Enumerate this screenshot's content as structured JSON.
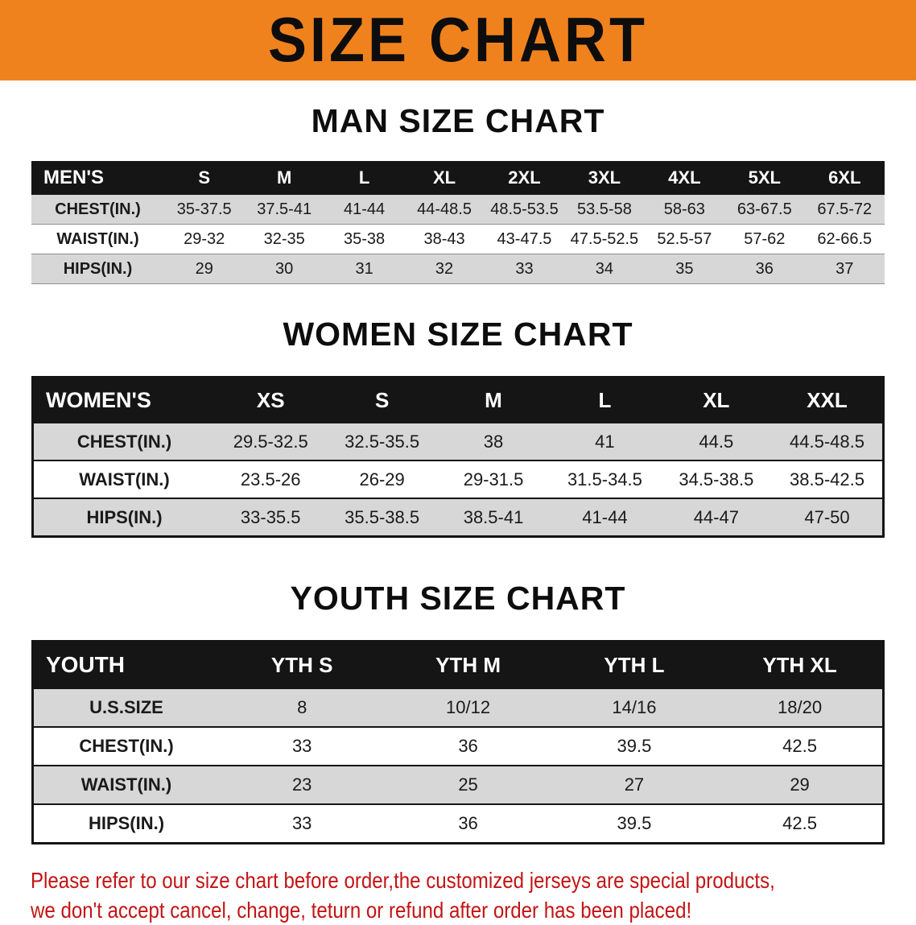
{
  "colors": {
    "banner_bg": "#F0821E",
    "table_header_bg": "#151515",
    "row_band": "#D7D7D7",
    "disclaimer_red": "#C31414"
  },
  "banner": {
    "title": "SIZE CHART"
  },
  "men": {
    "heading": "MAN SIZE CHART",
    "label": "MEN'S",
    "columns": [
      "S",
      "M",
      "L",
      "XL",
      "2XL",
      "3XL",
      "4XL",
      "5XL",
      "6XL"
    ],
    "rows": [
      {
        "label": "CHEST(IN.)",
        "values": [
          "35-37.5",
          "37.5-41",
          "41-44",
          "44-48.5",
          "48.5-53.5",
          "53.5-58",
          "58-63",
          "63-67.5",
          "67.5-72"
        ]
      },
      {
        "label": "WAIST(IN.)",
        "values": [
          "29-32",
          "32-35",
          "35-38",
          "38-43",
          "43-47.5",
          "47.5-52.5",
          "52.5-57",
          "57-62",
          "62-66.5"
        ]
      },
      {
        "label": "HIPS(IN.)",
        "values": [
          "29",
          "30",
          "31",
          "32",
          "33",
          "34",
          "35",
          "36",
          "37"
        ]
      }
    ]
  },
  "women": {
    "heading": "WOMEN SIZE CHART",
    "label": "WOMEN'S",
    "columns": [
      "XS",
      "S",
      "M",
      "L",
      "XL",
      "XXL"
    ],
    "rows": [
      {
        "label": "CHEST(IN.)",
        "values": [
          "29.5-32.5",
          "32.5-35.5",
          "38",
          "41",
          "44.5",
          "44.5-48.5"
        ]
      },
      {
        "label": "WAIST(IN.)",
        "values": [
          "23.5-26",
          "26-29",
          "29-31.5",
          "31.5-34.5",
          "34.5-38.5",
          "38.5-42.5"
        ]
      },
      {
        "label": "HIPS(IN.)",
        "values": [
          "33-35.5",
          "35.5-38.5",
          "38.5-41",
          "41-44",
          "44-47",
          "47-50"
        ]
      }
    ]
  },
  "youth": {
    "heading": "YOUTH SIZE CHART",
    "label": "YOUTH",
    "columns": [
      "YTH S",
      "YTH M",
      "YTH L",
      "YTH XL"
    ],
    "rows": [
      {
        "label": "U.S.SIZE",
        "values": [
          "8",
          "10/12",
          "14/16",
          "18/20"
        ]
      },
      {
        "label": "CHEST(IN.)",
        "values": [
          "33",
          "36",
          "39.5",
          "42.5"
        ]
      },
      {
        "label": "WAIST(IN.)",
        "values": [
          "23",
          "25",
          "27",
          "29"
        ]
      },
      {
        "label": "HIPS(IN.)",
        "values": [
          "33",
          "36",
          "39.5",
          "42.5"
        ]
      }
    ]
  },
  "disclaimer": {
    "line1": "Please refer to our size chart before order,the customized jerseys are special products,",
    "line2": "we don't accept cancel, change, teturn or refund after order has been placed!"
  }
}
